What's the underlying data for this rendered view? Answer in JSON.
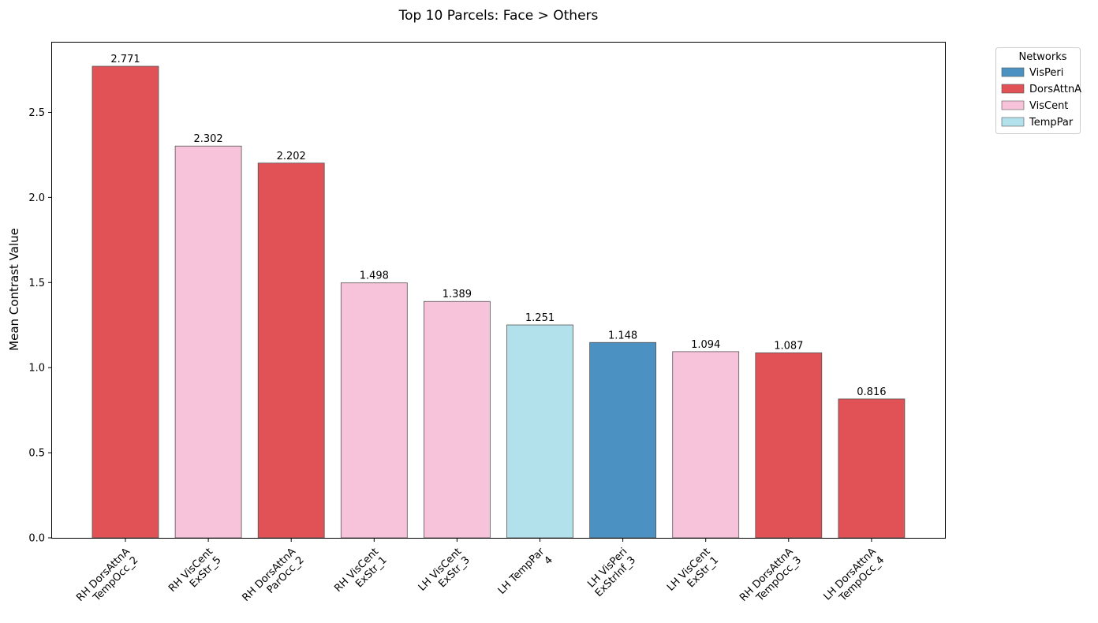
{
  "chart_data": {
    "type": "bar",
    "title": "Top 10 Parcels: Face > Others",
    "xlabel": "",
    "ylabel": "Mean Contrast Value",
    "ylim": [
      0,
      2.91
    ],
    "yticks": [
      "0.0",
      "0.5",
      "1.0",
      "1.5",
      "2.0",
      "2.5"
    ],
    "ytick_values": [
      0,
      0.5,
      1.0,
      1.5,
      2.0,
      2.5
    ],
    "grid": false,
    "categories": [
      [
        "RH DorsAttnA",
        "TempOcc_2"
      ],
      [
        "RH VisCent",
        "ExStr_5"
      ],
      [
        "RH DorsAttnA",
        "ParOcc_2"
      ],
      [
        "RH VisCent",
        "ExStr_1"
      ],
      [
        "LH VisCent",
        "ExStr_3"
      ],
      [
        "LH TempPar",
        "4"
      ],
      [
        "LH VisPeri",
        "ExStrInf_3"
      ],
      [
        "LH VisCent",
        "ExStr_1"
      ],
      [
        "RH DorsAttnA",
        "TempOcc_3"
      ],
      [
        "LH DorsAttnA",
        "TempOcc_4"
      ]
    ],
    "values": [
      2.771,
      2.302,
      2.202,
      1.498,
      1.389,
      1.251,
      1.148,
      1.094,
      1.087,
      0.816
    ],
    "value_labels": [
      "2.771",
      "2.302",
      "2.202",
      "1.498",
      "1.389",
      "1.251",
      "1.148",
      "1.094",
      "1.087",
      "0.816"
    ],
    "networks": [
      "DorsAttnA",
      "VisCent",
      "DorsAttnA",
      "VisCent",
      "VisCent",
      "TempPar",
      "VisPeri",
      "VisCent",
      "DorsAttnA",
      "DorsAttnA"
    ],
    "legend": {
      "title": "Networks",
      "placement": "outside-top-right",
      "entries": [
        {
          "name": "VisPeri",
          "color": "#4b92c3"
        },
        {
          "name": "DorsAttnA",
          "color": "#e05256"
        },
        {
          "name": "VisCent",
          "color": "#f7c3da"
        },
        {
          "name": "TempPar",
          "color": "#b3e1eb"
        }
      ]
    }
  }
}
